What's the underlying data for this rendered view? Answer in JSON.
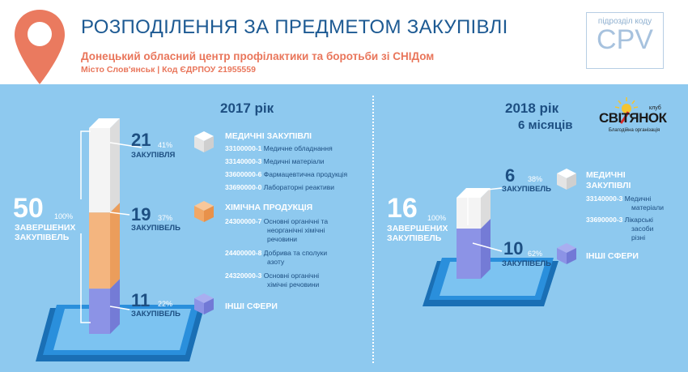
{
  "header": {
    "title": "РОЗПОДІЛЕННЯ ЗА ПРЕДМЕТОМ ЗАКУПІВЛІ",
    "subtitle": "Донецький обласний центр профілактики та боротьби зі СНІДом",
    "details": "Місто Слов'янськ  |  Код ЄДРПОУ 21955559",
    "cpv_label": "підрозділ коду",
    "cpv_code": "CPV"
  },
  "logo": {
    "name": "СВІТЯНОК",
    "club": "клуб",
    "tagline": "Благодійна організація"
  },
  "colors": {
    "white_block": "#f4f4f4",
    "orange_block": "#f4b57f",
    "purple_block": "#8c93e6",
    "phone": "#1f85d4",
    "bg": "#8ec9ef",
    "navy": "#1d4f82"
  },
  "y2017": {
    "year": "2017 рік",
    "total": {
      "value": "50",
      "pct": "100%",
      "label": [
        "ЗАВЕРШЕНИХ",
        "ЗАКУПІВЕЛЬ"
      ],
      "share": 1.0
    },
    "segments": [
      {
        "value": "21",
        "pct": "41%",
        "label": "ЗАКУПІВЛЯ",
        "share": 0.41,
        "icon": "white-cube-icon"
      },
      {
        "value": "19",
        "pct": "37%",
        "label": "ЗАКУПІВЕЛЬ",
        "share": 0.37,
        "icon": "orange-cube-icon"
      },
      {
        "value": "11",
        "pct": "22%",
        "label": "ЗАКУПІВЕЛЬ",
        "share": 0.22,
        "icon": "purple-cube-icon"
      }
    ],
    "categories": [
      {
        "title": "МЕДИЧНІ ЗАКУПІВЛІ",
        "items": [
          {
            "code": "33100000-1",
            "desc": "Медичне обладнання"
          },
          {
            "code": "33140000-3",
            "desc": "Медичні матеріали"
          },
          {
            "code": "33600000-6",
            "desc": "Фармацевтична продукція"
          },
          {
            "code": "33690000-0",
            "desc": "Лабораторні реактиви"
          }
        ]
      },
      {
        "title": "ХІМІЧНА ПРОДУКЦІЯ",
        "items": [
          {
            "code": "24300000-7",
            "desc1": "Основні органічні та",
            "desc2": "неорганічні хімічні",
            "desc3": "речовини"
          },
          {
            "code": "24400000-8",
            "desc1": "Добрива та сполуки",
            "desc2": "азоту"
          },
          {
            "code": "24320000-3",
            "desc1": "Основні органічні",
            "desc2": "хімічні речовини"
          }
        ]
      },
      {
        "title": "ІНШІ СФЕРИ"
      }
    ]
  },
  "y2018": {
    "year": "2018 рік",
    "period": "6 місяців",
    "total": {
      "value": "16",
      "pct": "100%",
      "label": [
        "ЗАВЕРШЕНИХ",
        "ЗАКУПІВЕЛЬ"
      ],
      "share": 1.0
    },
    "segments": [
      {
        "value": "6",
        "pct": "38%",
        "label": "ЗАКУПІВЕЛЬ",
        "share": 0.38
      },
      {
        "value": "10",
        "pct": "62%",
        "label": "ЗАКУПІВЕЛЬ",
        "share": 0.62
      }
    ],
    "categories": [
      {
        "title1": "МЕДИЧНІ",
        "title2": "ЗАКУПІВЛІ",
        "items": [
          {
            "code": "33140000-3",
            "desc1": "Медичні",
            "desc2": "матеріали"
          },
          {
            "code": "33690000-3",
            "desc1": "Лікарські",
            "desc2": "засоби",
            "desc3": "різні"
          }
        ]
      },
      {
        "title": "ІНШІ СФЕРИ"
      }
    ]
  }
}
